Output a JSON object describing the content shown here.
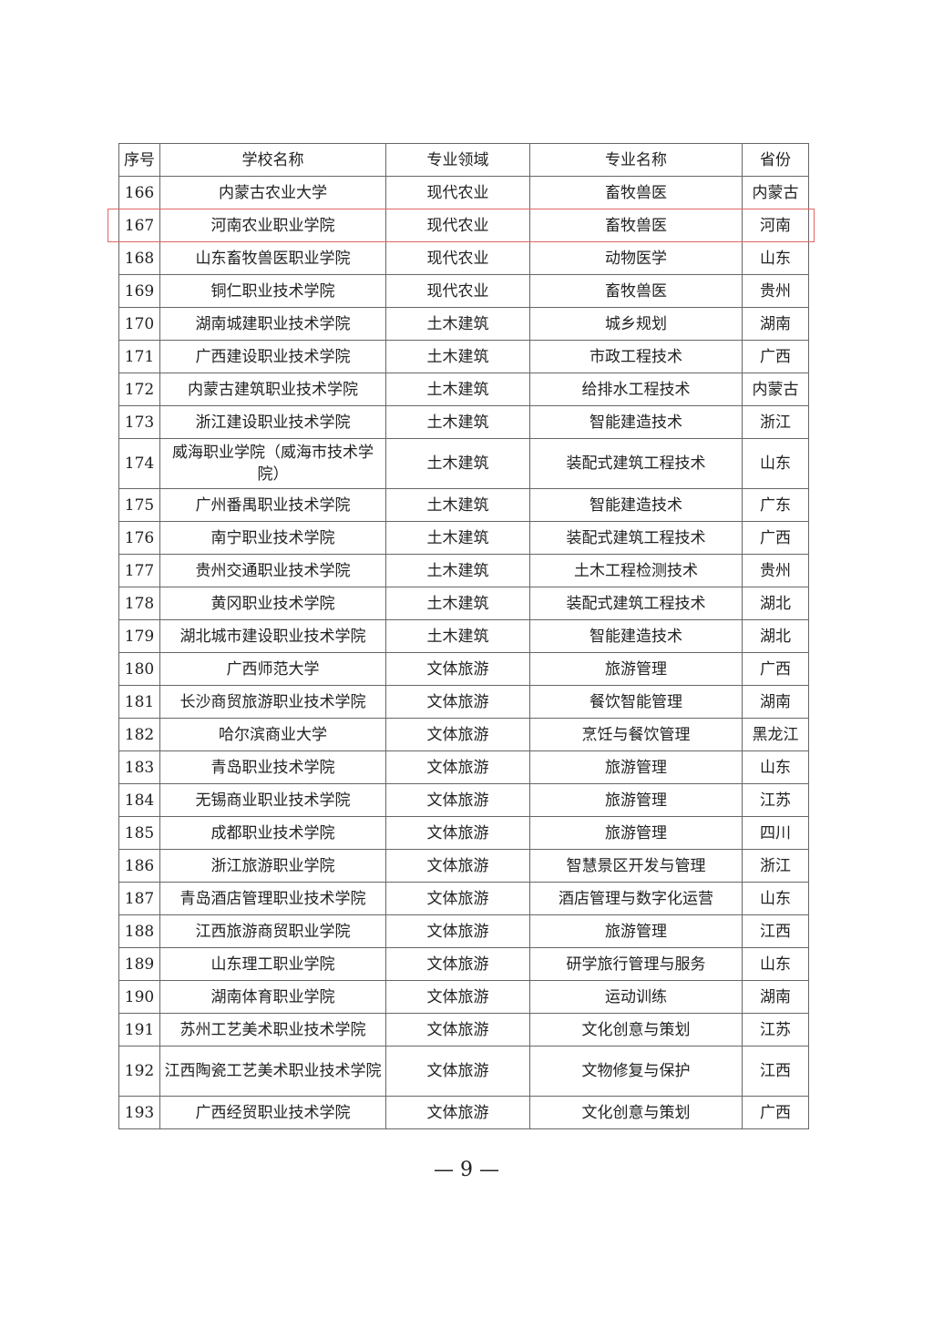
{
  "table": {
    "headers": [
      "序号",
      "学校名称",
      "专业领域",
      "专业名称",
      "省份"
    ],
    "rows": [
      [
        "166",
        "内蒙古农业大学",
        "现代农业",
        "畜牧兽医",
        "内蒙古"
      ],
      [
        "167",
        "河南农业职业学院",
        "现代农业",
        "畜牧兽医",
        "河南"
      ],
      [
        "168",
        "山东畜牧兽医职业学院",
        "现代农业",
        "动物医学",
        "山东"
      ],
      [
        "169",
        "铜仁职业技术学院",
        "现代农业",
        "畜牧兽医",
        "贵州"
      ],
      [
        "170",
        "湖南城建职业技术学院",
        "土木建筑",
        "城乡规划",
        "湖南"
      ],
      [
        "171",
        "广西建设职业技术学院",
        "土木建筑",
        "市政工程技术",
        "广西"
      ],
      [
        "172",
        "内蒙古建筑职业技术学院",
        "土木建筑",
        "给排水工程技术",
        "内蒙古"
      ],
      [
        "173",
        "浙江建设职业技术学院",
        "土木建筑",
        "智能建造技术",
        "浙江"
      ],
      [
        "174",
        "威海职业学院（威海市技术学院）",
        "土木建筑",
        "装配式建筑工程技术",
        "山东"
      ],
      [
        "175",
        "广州番禺职业技术学院",
        "土木建筑",
        "智能建造技术",
        "广东"
      ],
      [
        "176",
        "南宁职业技术学院",
        "土木建筑",
        "装配式建筑工程技术",
        "广西"
      ],
      [
        "177",
        "贵州交通职业技术学院",
        "土木建筑",
        "土木工程检测技术",
        "贵州"
      ],
      [
        "178",
        "黄冈职业技术学院",
        "土木建筑",
        "装配式建筑工程技术",
        "湖北"
      ],
      [
        "179",
        "湖北城市建设职业技术学院",
        "土木建筑",
        "智能建造技术",
        "湖北"
      ],
      [
        "180",
        "广西师范大学",
        "文体旅游",
        "旅游管理",
        "广西"
      ],
      [
        "181",
        "长沙商贸旅游职业技术学院",
        "文体旅游",
        "餐饮智能管理",
        "湖南"
      ],
      [
        "182",
        "哈尔滨商业大学",
        "文体旅游",
        "烹饪与餐饮管理",
        "黑龙江"
      ],
      [
        "183",
        "青岛职业技术学院",
        "文体旅游",
        "旅游管理",
        "山东"
      ],
      [
        "184",
        "无锡商业职业技术学院",
        "文体旅游",
        "旅游管理",
        "江苏"
      ],
      [
        "185",
        "成都职业技术学院",
        "文体旅游",
        "旅游管理",
        "四川"
      ],
      [
        "186",
        "浙江旅游职业学院",
        "文体旅游",
        "智慧景区开发与管理",
        "浙江"
      ],
      [
        "187",
        "青岛酒店管理职业技术学院",
        "文体旅游",
        "酒店管理与数字化运营",
        "山东"
      ],
      [
        "188",
        "江西旅游商贸职业学院",
        "文体旅游",
        "旅游管理",
        "江西"
      ],
      [
        "189",
        "山东理工职业学院",
        "文体旅游",
        "研学旅行管理与服务",
        "山东"
      ],
      [
        "190",
        "湖南体育职业学院",
        "文体旅游",
        "运动训练",
        "湖南"
      ],
      [
        "191",
        "苏州工艺美术职业技术学院",
        "文体旅游",
        "文化创意与策划",
        "江苏"
      ],
      [
        "192",
        "江西陶瓷工艺美术职业技术学院",
        "文体旅游",
        "文物修复与保护",
        "江西"
      ],
      [
        "193",
        "广西经贸职业技术学院",
        "文体旅游",
        "文化创意与策划",
        "广西"
      ]
    ],
    "highlighted_row": "167",
    "highlight_color": "#e06666"
  },
  "footer": {
    "page_number": "— 9 —"
  }
}
